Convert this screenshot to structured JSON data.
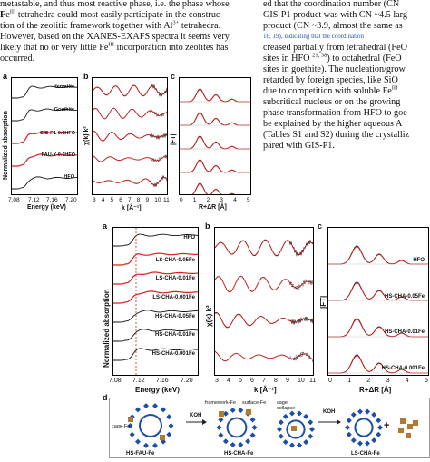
{
  "text_left": [
    "metastable, and thus most reactive phase, i.e. the phase whose",
    "Fe III tetrahedra could most easily participate in the construc-",
    "tion of the zeolitic framework together with Al 3+ tetrahedra.",
    "However, based on the XANES-EXAFS spectra it seems very",
    "likely that no or very little Fe III incorporation into zeolites has",
    "occurred."
  ],
  "text_right": [
    "ed that the coordination number (CN",
    "GIS-P1 product was with CN ~4.5 larg",
    "product (CN ~3.9, almost the same as",
    "18, 19), indicating that the coordination",
    "creased partially from tetrahedral (FeO",
    "sites in HFO 21, 38) to octahedral (FeO",
    "sites in goethite). The nucleation/grow",
    "retarded by foreign species, like SiO",
    "due to competition with soluble Fe III",
    "subcritical nucleus or on the growing",
    "phase transformation from HFO to goe",
    "be explained by the higher aqueous A",
    "(Tables S1 and S2) during the crystalliz",
    "pared with GIS-P1."
  ],
  "fig1": {
    "panel_a": {
      "label": "a",
      "ylabel": "Normalized absorption",
      "xlabel": "Energy (keV)",
      "xticks": [
        "7.08",
        "7.12",
        "7.16",
        "7.20"
      ],
      "series": [
        "Hematite",
        "Goethite",
        "GIS-P1-0.1HFO",
        "FAU-Y-0.1HFO",
        "HFO"
      ]
    },
    "panel_b": {
      "label": "b",
      "ylabel": "χ(k) k²",
      "xlabel": "k [Å⁻¹]",
      "xticks": [
        "3",
        "4",
        "5",
        "6",
        "7",
        "8",
        "9",
        "10",
        "11"
      ]
    },
    "panel_c": {
      "label": "c",
      "ylabel": "|FT|",
      "xlabel": "R+ΔR [Å]",
      "xticks": [
        "0",
        "1",
        "2",
        "3",
        "4",
        "5"
      ]
    }
  },
  "fig2": {
    "panel_a": {
      "label": "a",
      "ylabel": "Normalized absorption",
      "xlabel": "Energy (keV)",
      "xticks": [
        "7.08",
        "7.12",
        "7.16",
        "7.20"
      ],
      "series": [
        "HFO",
        "LS-CHA-0.05Fe",
        "LS-CHA-0.01Fe",
        "LS-CHA-0.001Fe",
        "HS-CHA-0.05Fe",
        "HS-CHA-0.01Fe",
        "HS-CHA-0.001Fe"
      ]
    },
    "panel_b": {
      "label": "b",
      "ylabel": "χ(k) k²",
      "xlabel": "k [Å⁻¹]",
      "xticks": [
        "3",
        "4",
        "5",
        "6",
        "7",
        "8",
        "9",
        "10",
        "11"
      ]
    },
    "panel_c": {
      "label": "c",
      "ylabel": "|FT|",
      "xlabel": "R+ΔR [Å]",
      "xticks": [
        "0",
        "1",
        "2",
        "3",
        "4",
        "5"
      ],
      "series": [
        "HFO",
        "HS-CHA-0.05Fe",
        "HS-CHA-0.01Fe",
        "HS-CHA-0.001Fe"
      ]
    },
    "panel_d": {
      "label": "d",
      "labels": [
        "cage-Fe",
        "framework-Fe",
        "surface-Fe",
        "cage collapse",
        "KOH",
        "KOH",
        "HS-FAU-Fe",
        "HS-CHA-Fe",
        "LS-CHA-Fe",
        "+"
      ]
    }
  },
  "colors": {
    "data": "#111111",
    "fit": "#d42020",
    "dashed": "#d42020",
    "crystal": "#1d4fa8",
    "fe": "#b07a30"
  }
}
